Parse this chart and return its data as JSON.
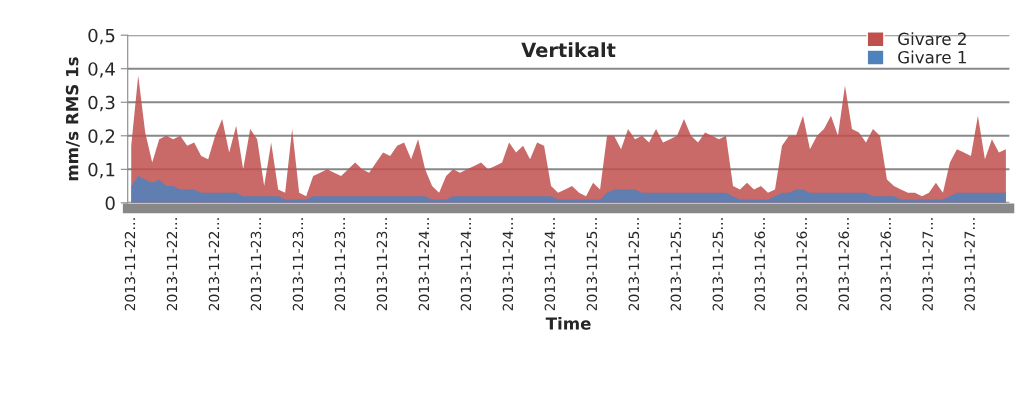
{
  "chart_data": {
    "type": "area",
    "title": "Vertikalt",
    "xlabel": "Time",
    "ylabel": "mm/s RMS 1s",
    "categories": [
      "2013-11-22…",
      null,
      null,
      null,
      null,
      null,
      "2013-11-22…",
      null,
      null,
      null,
      null,
      null,
      "2013-11-22…",
      null,
      null,
      null,
      null,
      null,
      "2013-11-23…",
      null,
      null,
      null,
      null,
      null,
      "2013-11-23…",
      null,
      null,
      null,
      null,
      null,
      "2013-11-23…",
      null,
      null,
      null,
      null,
      null,
      "2013-11-23…",
      null,
      null,
      null,
      null,
      null,
      "2013-11-24…",
      null,
      null,
      null,
      null,
      null,
      "2013-11-24…",
      null,
      null,
      null,
      null,
      null,
      "2013-11-24…",
      null,
      null,
      null,
      null,
      null,
      "2013-11-24…",
      null,
      null,
      null,
      null,
      null,
      "2013-11-25…",
      null,
      null,
      null,
      null,
      null,
      "2013-11-25…",
      null,
      null,
      null,
      null,
      null,
      "2013-11-25…",
      null,
      null,
      null,
      null,
      null,
      "2013-11-25…",
      null,
      null,
      null,
      null,
      null,
      "2013-11-26…",
      null,
      null,
      null,
      null,
      null,
      "2013-11-26…",
      null,
      null,
      null,
      null,
      null,
      "2013-11-26…",
      null,
      null,
      null,
      null,
      null,
      "2013-11-26…",
      null,
      null,
      null,
      null,
      null,
      "2013-11-27…",
      null,
      null,
      null,
      null,
      null,
      "2013-11-27…",
      null,
      null,
      null,
      null,
      null
    ],
    "series": [
      {
        "name": "Givare 2",
        "color": "#c0504d",
        "values": [
          0.17,
          0.38,
          0.21,
          0.12,
          0.19,
          0.2,
          0.19,
          0.2,
          0.17,
          0.18,
          0.14,
          0.13,
          0.2,
          0.25,
          0.15,
          0.23,
          0.1,
          0.22,
          0.19,
          0.05,
          0.18,
          0.04,
          0.03,
          0.22,
          0.03,
          0.02,
          0.08,
          0.09,
          0.1,
          0.09,
          0.08,
          0.1,
          0.12,
          0.1,
          0.09,
          0.12,
          0.15,
          0.14,
          0.17,
          0.18,
          0.13,
          0.19,
          0.1,
          0.05,
          0.03,
          0.08,
          0.1,
          0.09,
          0.1,
          0.11,
          0.12,
          0.1,
          0.11,
          0.12,
          0.18,
          0.15,
          0.17,
          0.13,
          0.18,
          0.17,
          0.05,
          0.03,
          0.04,
          0.05,
          0.03,
          0.02,
          0.06,
          0.04,
          0.2,
          0.2,
          0.16,
          0.22,
          0.19,
          0.2,
          0.18,
          0.22,
          0.18,
          0.19,
          0.2,
          0.25,
          0.2,
          0.18,
          0.21,
          0.2,
          0.19,
          0.2,
          0.05,
          0.04,
          0.06,
          0.04,
          0.05,
          0.03,
          0.04,
          0.17,
          0.2,
          0.2,
          0.26,
          0.16,
          0.2,
          0.22,
          0.26,
          0.2,
          0.35,
          0.22,
          0.21,
          0.18,
          0.22,
          0.2,
          0.07,
          0.05,
          0.04,
          0.03,
          0.03,
          0.02,
          0.03,
          0.06,
          0.03,
          0.12,
          0.16,
          0.15,
          0.14,
          0.26,
          0.13,
          0.19,
          0.15,
          0.16
        ]
      },
      {
        "name": "Givare 1",
        "color": "#4f81bd",
        "values": [
          0.05,
          0.08,
          0.07,
          0.06,
          0.07,
          0.05,
          0.05,
          0.04,
          0.04,
          0.04,
          0.03,
          0.03,
          0.03,
          0.03,
          0.03,
          0.03,
          0.02,
          0.02,
          0.02,
          0.02,
          0.02,
          0.02,
          0.01,
          0.01,
          0.01,
          0.01,
          0.02,
          0.02,
          0.02,
          0.02,
          0.02,
          0.02,
          0.02,
          0.02,
          0.02,
          0.02,
          0.02,
          0.02,
          0.02,
          0.02,
          0.02,
          0.02,
          0.02,
          0.01,
          0.01,
          0.01,
          0.02,
          0.02,
          0.02,
          0.02,
          0.02,
          0.02,
          0.02,
          0.02,
          0.02,
          0.02,
          0.02,
          0.02,
          0.02,
          0.02,
          0.02,
          0.01,
          0.01,
          0.01,
          0.01,
          0.01,
          0.01,
          0.01,
          0.03,
          0.04,
          0.04,
          0.04,
          0.04,
          0.03,
          0.03,
          0.03,
          0.03,
          0.03,
          0.03,
          0.03,
          0.03,
          0.03,
          0.03,
          0.03,
          0.03,
          0.03,
          0.02,
          0.01,
          0.01,
          0.01,
          0.01,
          0.01,
          0.02,
          0.03,
          0.03,
          0.04,
          0.04,
          0.03,
          0.03,
          0.03,
          0.03,
          0.03,
          0.03,
          0.03,
          0.03,
          0.03,
          0.02,
          0.02,
          0.02,
          0.02,
          0.01,
          0.01,
          0.01,
          0.01,
          0.01,
          0.01,
          0.01,
          0.02,
          0.03,
          0.03,
          0.03,
          0.03,
          0.03,
          0.03,
          0.03,
          0.03
        ]
      }
    ],
    "ylim": [
      0,
      0.5
    ],
    "yticks": [
      0,
      {
        "value": 0.1,
        "label": "0,1"
      },
      {
        "value": 0.2,
        "label": "0,2"
      },
      {
        "value": 0.3,
        "label": "0,3"
      },
      {
        "value": 0.4,
        "label": "0,4"
      },
      {
        "value": 0.5,
        "label": "0,5"
      }
    ],
    "grid": "y",
    "legend": "top right"
  }
}
